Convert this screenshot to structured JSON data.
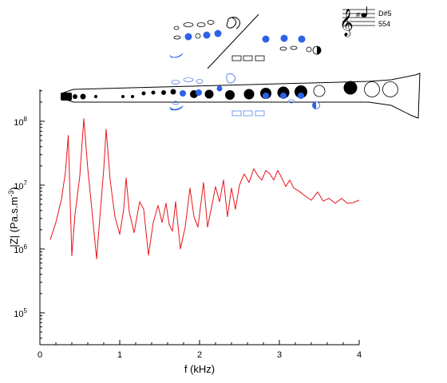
{
  "note": {
    "name": "D#5",
    "frequency": "554"
  },
  "colors": {
    "curve": "#e8131a",
    "open_key": "#2e62e6",
    "closed_hole": "#000000",
    "axes": "#000000"
  },
  "fingering_chart": {
    "icons": [
      "treble-clef-icon",
      "sharp-icon",
      "note-head-icon"
    ]
  },
  "chart_data": {
    "type": "line",
    "title": "",
    "xlabel": "f (kHz)",
    "ylabel": "|Z| (Pa.s.m",
    "ylabel_sup": "-3",
    "ylabel_close": ")",
    "xlim": [
      0,
      4
    ],
    "ylim_log10": [
      4.5,
      8.5
    ],
    "yscale": "log",
    "grid": false,
    "xticks": [
      0,
      1,
      2,
      3,
      4
    ],
    "xtick_labels": [
      "0",
      "1",
      "2",
      "3",
      "4"
    ],
    "yticks_log10": [
      5,
      6,
      7,
      8
    ],
    "ytick_base": "10",
    "ytick_exponents": [
      "5",
      "6",
      "7",
      "8"
    ],
    "series": [
      {
        "x": [
          0.13,
          0.2,
          0.27,
          0.32,
          0.355,
          0.4,
          0.44,
          0.5,
          0.55,
          0.6,
          0.66,
          0.71,
          0.75,
          0.8,
          0.83,
          0.88,
          0.94,
          1.0,
          1.05,
          1.08,
          1.12,
          1.18,
          1.25,
          1.3,
          1.36,
          1.42,
          1.48,
          1.53,
          1.58,
          1.62,
          1.66,
          1.7,
          1.76,
          1.82,
          1.88,
          1.93,
          1.98,
          2.05,
          2.1,
          2.17,
          2.2,
          2.25,
          2.3,
          2.35,
          2.4,
          2.45,
          2.5,
          2.56,
          2.62,
          2.68,
          2.73,
          2.78,
          2.83,
          2.88,
          2.93,
          2.98,
          3.03,
          3.08,
          3.13,
          3.18,
          3.25,
          3.32,
          3.4,
          3.48,
          3.55,
          3.62,
          3.7,
          3.78,
          3.85,
          3.92,
          4.0
        ],
        "y": [
          1400000.0,
          2600000.0,
          6000000.0,
          16000000.0,
          60000000.0,
          780000.0,
          3500000.0,
          14000000.0,
          110000000.0,
          18000000.0,
          3200000.0,
          700000.0,
          3000000.0,
          18000000.0,
          75000000.0,
          12000000.0,
          3200000.0,
          1700000.0,
          4200000.0,
          13000000.0,
          3800000.0,
          1800000.0,
          5500000.0,
          4200000.0,
          800000.0,
          2600000.0,
          4800000.0,
          2600000.0,
          5200000.0,
          2400000.0,
          1900000.0,
          5500000.0,
          1000000.0,
          2200000.0,
          9000000.0,
          3200000.0,
          2200000.0,
          11000000.0,
          2200000.0,
          6000000.0,
          9500000.0,
          5500000.0,
          12000000.0,
          3200000.0,
          9000000.0,
          4200000.0,
          10000000.0,
          15000000.0,
          11000000.0,
          18000000.0,
          14000000.0,
          12000000.0,
          17000000.0,
          15000000.0,
          12000000.0,
          17000000.0,
          13000000.0,
          9500000.0,
          12000000.0,
          9000000.0,
          8000000.0,
          6800000.0,
          5800000.0,
          7800000.0,
          5600000.0,
          6200000.0,
          5200000.0,
          6200000.0,
          5200000.0,
          5300000.0,
          5800000.0
        ]
      }
    ]
  }
}
